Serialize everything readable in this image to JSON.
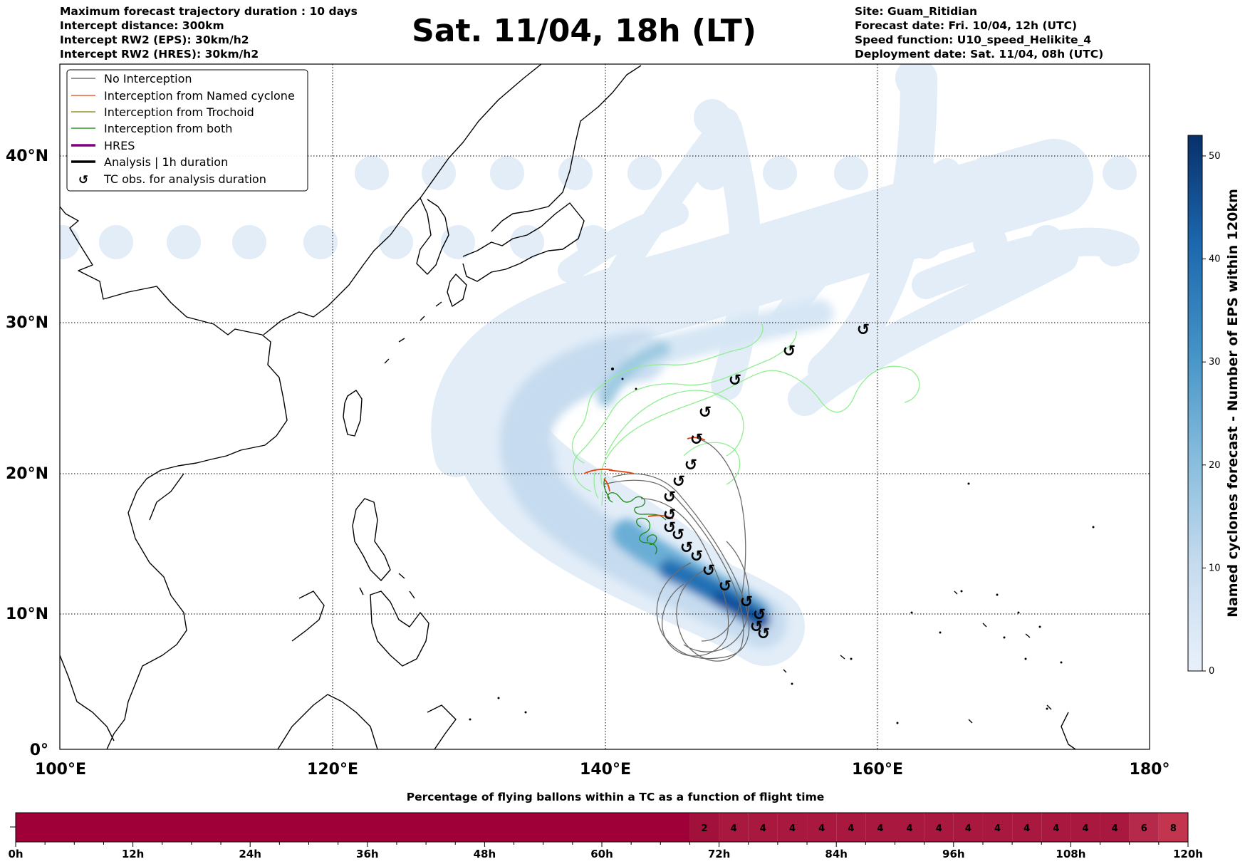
{
  "header": {
    "left": [
      "Maximum forecast trajectory duration : 10 days",
      "Intercept distance: 300km",
      "Intercept RW2 (EPS):  30km/h2",
      "Intercept RW2 (HRES): 30km/h2"
    ],
    "title": "Sat. 11/04, 18h (LT)",
    "right": [
      "Site: Guam_Ritidian",
      "Forecast date: Fri. 10/04, 12h (UTC)",
      "Speed function: U10_speed_Helikite_4",
      "Deployment date: Sat. 11/04, 08h (UTC)"
    ]
  },
  "map": {
    "lon_ticks": [
      "100°E",
      "120°E",
      "140°E",
      "160°E",
      "180°"
    ],
    "lat_ticks": [
      "40°N",
      "30°N",
      "20°N",
      "10°N",
      "0°"
    ],
    "lon_range": [
      100,
      180
    ],
    "lat_range": [
      0,
      45
    ],
    "tc_obs_symbol": "tc-obs-icon"
  },
  "legend": {
    "items": [
      {
        "label": "No Interception",
        "color": "#555555"
      },
      {
        "label": "Interception from Named cyclone",
        "color": "#e8400c"
      },
      {
        "label": "Interception from Trochoid",
        "color": "#808000"
      },
      {
        "label": "Interception from both",
        "color": "#008000"
      },
      {
        "label": "HRES",
        "color": "#800080"
      },
      {
        "label": "Analysis | 1h duration",
        "color": "#000000"
      },
      {
        "label": "TC obs. for analysis duration",
        "color": "#000000"
      }
    ]
  },
  "colorbar": {
    "label": "Named cyclones forecast - Number of EPS within 120km",
    "ticks": [
      "0",
      "10",
      "20",
      "30",
      "40",
      "50"
    ],
    "min": 0,
    "max": 52,
    "color_low": "#e8f1fa",
    "color_high": "#08306b"
  },
  "flight_bar": {
    "title": "Percentage of flying ballons within a TC as a function of flight time",
    "ticks": [
      "0h",
      "12h",
      "24h",
      "36h",
      "48h",
      "60h",
      "72h",
      "84h",
      "96h",
      "108h",
      "120h"
    ],
    "cells": [
      {
        "from_h": 0,
        "to_h": 69,
        "value": ""
      },
      {
        "from_h": 69,
        "to_h": 72,
        "value": "2"
      },
      {
        "from_h": 72,
        "to_h": 75,
        "value": "4"
      },
      {
        "from_h": 75,
        "to_h": 78,
        "value": "4"
      },
      {
        "from_h": 78,
        "to_h": 81,
        "value": "4"
      },
      {
        "from_h": 81,
        "to_h": 84,
        "value": "4"
      },
      {
        "from_h": 84,
        "to_h": 87,
        "value": "4"
      },
      {
        "from_h": 87,
        "to_h": 90,
        "value": "4"
      },
      {
        "from_h": 90,
        "to_h": 93,
        "value": "4"
      },
      {
        "from_h": 93,
        "to_h": 96,
        "value": "4"
      },
      {
        "from_h": 96,
        "to_h": 99,
        "value": "4"
      },
      {
        "from_h": 99,
        "to_h": 102,
        "value": "4"
      },
      {
        "from_h": 102,
        "to_h": 105,
        "value": "4"
      },
      {
        "from_h": 105,
        "to_h": 108,
        "value": "4"
      },
      {
        "from_h": 108,
        "to_h": 111,
        "value": "4"
      },
      {
        "from_h": 111,
        "to_h": 114,
        "value": "4"
      },
      {
        "from_h": 114,
        "to_h": 117,
        "value": "6"
      },
      {
        "from_h": 117,
        "to_h": 120,
        "value": "8"
      }
    ]
  }
}
